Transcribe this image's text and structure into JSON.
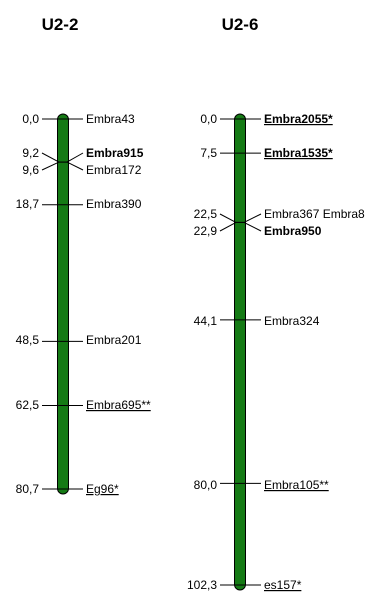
{
  "linkage_groups": [
    {
      "name": "U2-2",
      "total_cm": 80.7,
      "markers": [
        {
          "pos": "0,0",
          "cm": 0.0,
          "name": "Embra43",
          "style": "normal"
        },
        {
          "pos": "9,2",
          "cm": 9.2,
          "name": "Embra915",
          "style": "bold"
        },
        {
          "pos": "9,6",
          "cm": 9.6,
          "name": "Embra172",
          "style": "normal"
        },
        {
          "pos": "18,7",
          "cm": 18.7,
          "name": "Embra390",
          "style": "normal"
        },
        {
          "pos": "48,5",
          "cm": 48.5,
          "name": "Embra201",
          "style": "normal"
        },
        {
          "pos": "62,5",
          "cm": 62.5,
          "name": "Embra695**",
          "style": "underline"
        },
        {
          "pos": "80,7",
          "cm": 80.7,
          "name": "Eg96*",
          "style": "underline"
        }
      ]
    },
    {
      "name": "U2-6",
      "total_cm": 102.3,
      "markers": [
        {
          "pos": "0,0",
          "cm": 0.0,
          "name": "Embra2055*",
          "style": "bold-underline"
        },
        {
          "pos": "7,5",
          "cm": 7.5,
          "name": "Embra1535*",
          "style": "bold-underline"
        },
        {
          "pos": "22,5",
          "cm": 22.5,
          "name": "Embra367 Embra8",
          "style": "normal"
        },
        {
          "pos": "22,9",
          "cm": 22.9,
          "name": "Embra950",
          "style": "bold"
        },
        {
          "pos": "44,1",
          "cm": 44.1,
          "name": "Embra324",
          "style": "normal"
        },
        {
          "pos": "80,0",
          "cm": 80.0,
          "name": "Embra105**",
          "style": "underline"
        },
        {
          "pos": "102,3",
          "cm": 102.3,
          "name": "es157*",
          "style": "underline"
        }
      ]
    }
  ],
  "colors": {
    "chromosome_fill": "#157a15",
    "chromosome_stroke": "#000000",
    "text": "#000000"
  }
}
